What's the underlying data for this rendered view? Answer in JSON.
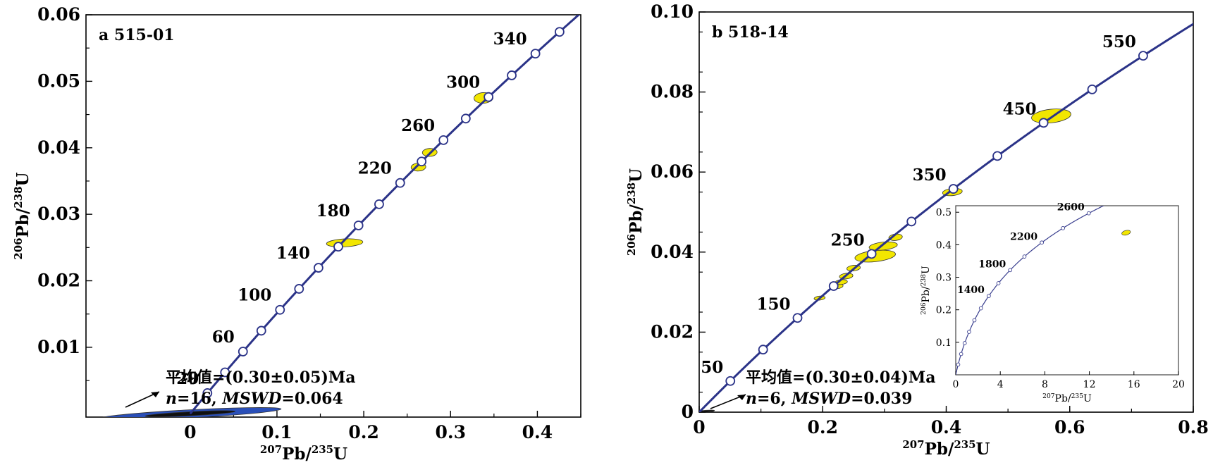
{
  "chart_data": [
    {
      "type": "scatter",
      "panel_label": "a",
      "sample": "515-01",
      "xlabel": {
        "sup1": "207",
        "base1": "Pb/",
        "sup2": "235",
        "base2": "U"
      },
      "ylabel": {
        "sup1": "206",
        "base1": "Pb/",
        "sup2": "238",
        "base2": "U"
      },
      "xlim": [
        -0.12,
        0.45
      ],
      "ylim": [
        -0.0005,
        0.06
      ],
      "x_ticks": [
        {
          "v": 0,
          "label": "0"
        },
        {
          "v": 0.1,
          "label": "0.1"
        },
        {
          "v": 0.2,
          "label": "0.2"
        },
        {
          "v": 0.3,
          "label": "0.3"
        },
        {
          "v": 0.4,
          "label": "0.4"
        }
      ],
      "y_ticks": [
        {
          "v": 0.01,
          "label": "0.01"
        },
        {
          "v": 0.02,
          "label": "0.02"
        },
        {
          "v": 0.03,
          "label": "0.03"
        },
        {
          "v": 0.04,
          "label": "0.04"
        },
        {
          "v": 0.05,
          "label": "0.05"
        },
        {
          "v": 0.06,
          "label": "0.06"
        }
      ],
      "concordia_ages_ma": [
        20,
        40,
        60,
        80,
        100,
        120,
        140,
        160,
        180,
        200,
        220,
        240,
        260,
        280,
        300,
        320,
        340,
        360
      ],
      "age_labels": [
        "20",
        "60",
        "100",
        "140",
        "180",
        "220",
        "260",
        "300",
        "340"
      ],
      "ellipses": [
        {
          "x": 0.178,
          "y": 0.0257,
          "rx": 0.021,
          "ry": 0.0006,
          "color": "#f2e600"
        },
        {
          "x": 0.263,
          "y": 0.0371,
          "rx": 0.0085,
          "ry": 0.0006,
          "color": "#f2e600"
        },
        {
          "x": 0.276,
          "y": 0.0393,
          "rx": 0.0085,
          "ry": 0.0006,
          "color": "#f2e600"
        },
        {
          "x": 0.338,
          "y": 0.0475,
          "rx": 0.011,
          "ry": 0.0008,
          "color": "#f2e600"
        },
        {
          "x": 0.0,
          "y": 0.0,
          "rx": 0.105,
          "ry": 0.0006,
          "color": "#2a4fb8"
        },
        {
          "x": 0.0,
          "y": 0.0,
          "rx": 0.052,
          "ry": 0.0003,
          "color": "#101010"
        }
      ],
      "stats_line1": "平均值=(0.30±0.05)Ma",
      "stats_line2_n": "n",
      "stats_line2_eq1": "=16, ",
      "stats_line2_mswd": "MSWD",
      "stats_line2_eq2": "=0.064"
    },
    {
      "type": "scatter",
      "panel_label": "b",
      "sample": "518-14",
      "xlabel": {
        "sup1": "207",
        "base1": "Pb/",
        "sup2": "235",
        "base2": "U"
      },
      "ylabel": {
        "sup1": "206",
        "base1": "Pb/",
        "sup2": "238",
        "base2": "U"
      },
      "xlim": [
        0,
        0.8
      ],
      "ylim": [
        0,
        0.1
      ],
      "x_ticks": [
        {
          "v": 0,
          "label": "0"
        },
        {
          "v": 0.2,
          "label": "0.2"
        },
        {
          "v": 0.4,
          "label": "0.4"
        },
        {
          "v": 0.6,
          "label": "0.6"
        },
        {
          "v": 0.8,
          "label": "0.8"
        }
      ],
      "y_ticks": [
        {
          "v": 0,
          "label": "0"
        },
        {
          "v": 0.02,
          "label": "0.02"
        },
        {
          "v": 0.04,
          "label": "0.04"
        },
        {
          "v": 0.06,
          "label": "0.06"
        },
        {
          "v": 0.08,
          "label": "0.08"
        },
        {
          "v": 0.1,
          "label": "0.10"
        }
      ],
      "concordia_ages_ma": [
        50,
        100,
        150,
        200,
        250,
        300,
        350,
        400,
        450,
        500,
        550
      ],
      "age_labels": [
        "50",
        "150",
        "250",
        "350",
        "450",
        "550"
      ],
      "ellipses": [
        {
          "x": 0.195,
          "y": 0.0285,
          "rx": 0.009,
          "ry": 0.0005,
          "color": "#f2e600"
        },
        {
          "x": 0.225,
          "y": 0.0315,
          "rx": 0.008,
          "ry": 0.0006,
          "color": "#f2e600"
        },
        {
          "x": 0.23,
          "y": 0.0325,
          "rx": 0.01,
          "ry": 0.0006,
          "color": "#f2e600"
        },
        {
          "x": 0.238,
          "y": 0.034,
          "rx": 0.011,
          "ry": 0.0007,
          "color": "#f2e600"
        },
        {
          "x": 0.25,
          "y": 0.036,
          "rx": 0.011,
          "ry": 0.0007,
          "color": "#f2e600"
        },
        {
          "x": 0.285,
          "y": 0.039,
          "rx": 0.033,
          "ry": 0.0014,
          "color": "#f2e600"
        },
        {
          "x": 0.298,
          "y": 0.0415,
          "rx": 0.023,
          "ry": 0.001,
          "color": "#f2e600"
        },
        {
          "x": 0.318,
          "y": 0.0437,
          "rx": 0.011,
          "ry": 0.0008,
          "color": "#f2e600"
        },
        {
          "x": 0.41,
          "y": 0.055,
          "rx": 0.016,
          "ry": 0.0009,
          "color": "#f2e600"
        },
        {
          "x": 0.57,
          "y": 0.074,
          "rx": 0.032,
          "ry": 0.0017,
          "color": "#f2e600"
        },
        {
          "x": 0.0,
          "y": 0.0,
          "rx": 0.025,
          "ry": 0.0003,
          "color": "#101010"
        }
      ],
      "stats_line1": "平均值=(0.30±0.04)Ma",
      "stats_line2_n": "n",
      "stats_line2_eq1": "=6, ",
      "stats_line2_mswd": "MSWD",
      "stats_line2_eq2": "=0.039",
      "inset": {
        "xlim": [
          0,
          20
        ],
        "ylim": [
          0,
          0.52
        ],
        "x_ticks": [
          {
            "v": 0,
            "label": "0"
          },
          {
            "v": 4,
            "label": "4"
          },
          {
            "v": 8,
            "label": "8"
          },
          {
            "v": 12,
            "label": "12"
          },
          {
            "v": 16,
            "label": "16"
          },
          {
            "v": 20,
            "label": "20"
          }
        ],
        "y_ticks": [
          {
            "v": 0.1,
            "label": "0.1"
          },
          {
            "v": 0.2,
            "label": "0.2"
          },
          {
            "v": 0.3,
            "label": "0.3"
          },
          {
            "v": 0.4,
            "label": "0.4"
          },
          {
            "v": 0.5,
            "label": "0.5"
          }
        ],
        "concordia_ages_ma": [
          200,
          400,
          600,
          800,
          1000,
          1200,
          1400,
          1600,
          1800,
          2000,
          2200,
          2400,
          2600,
          2800
        ],
        "age_labels": [
          "1400",
          "1800",
          "2200",
          "2600"
        ],
        "ellipse": {
          "x": 15.3,
          "y": 0.437,
          "rx": 0.4,
          "ry": 0.007,
          "color": "#f2e600"
        }
      }
    }
  ]
}
